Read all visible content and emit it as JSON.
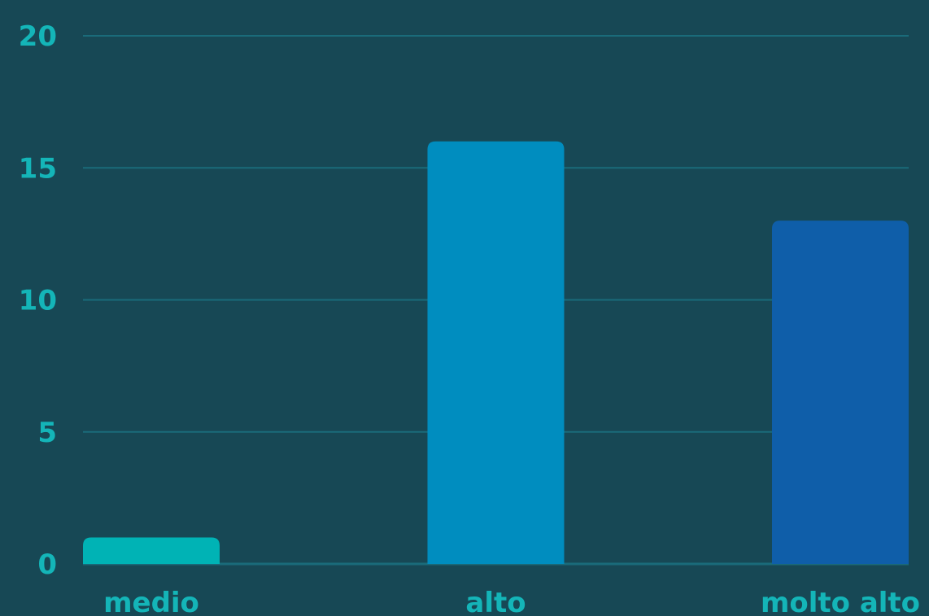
{
  "chart_data": {
    "type": "bar",
    "categories": [
      "medio",
      "alto",
      "molto alto"
    ],
    "values": [
      1,
      16,
      13
    ],
    "ylim": [
      0,
      20
    ],
    "yticks": [
      "0",
      "5",
      "10",
      "15",
      "20"
    ],
    "grid": true,
    "legend": "none"
  },
  "colors": {
    "background": "#174855",
    "gridline": "#1a6b7a",
    "axis_text": "#14b5b8",
    "bars": [
      "#00b3b5",
      "#008dbf",
      "#0f5ea9"
    ]
  }
}
